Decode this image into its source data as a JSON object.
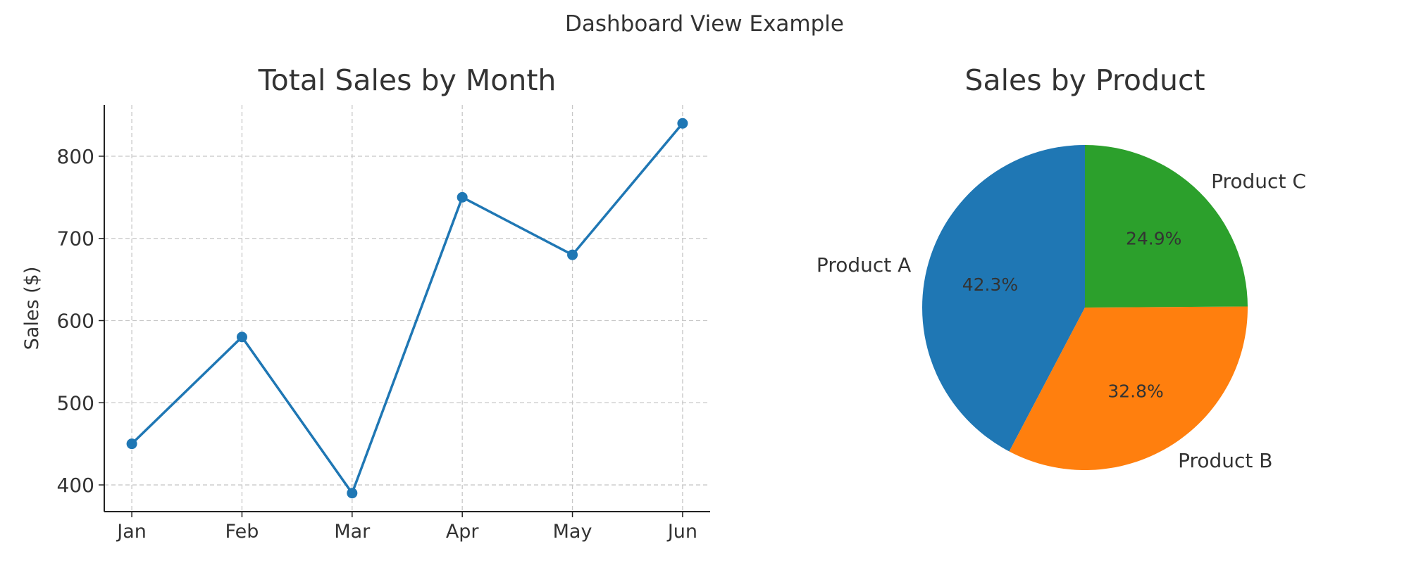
{
  "suptitle": "Dashboard View Example",
  "chart_data": [
    {
      "type": "line",
      "title": "Total Sales by Month",
      "xlabel": "",
      "ylabel": "Sales ($)",
      "categories": [
        "Jan",
        "Feb",
        "Mar",
        "Apr",
        "May",
        "Jun"
      ],
      "values": [
        450,
        580,
        390,
        750,
        680,
        840
      ],
      "ylim": [
        367.5,
        862.5
      ],
      "yticks": [
        400,
        500,
        600,
        700,
        800
      ],
      "grid": true,
      "marker": "circle",
      "color": "#1f77b4"
    },
    {
      "type": "pie",
      "title": "Sales by Product",
      "labels": [
        "Product A",
        "Product B",
        "Product C"
      ],
      "values": [
        42.3,
        32.8,
        24.9
      ],
      "pct_labels": [
        "42.3%",
        "32.8%",
        "24.9%"
      ],
      "start_angle": 90,
      "direction": "counterclockwise",
      "colors": [
        "#1f77b4",
        "#ff7f0e",
        "#2ca02c"
      ]
    }
  ]
}
